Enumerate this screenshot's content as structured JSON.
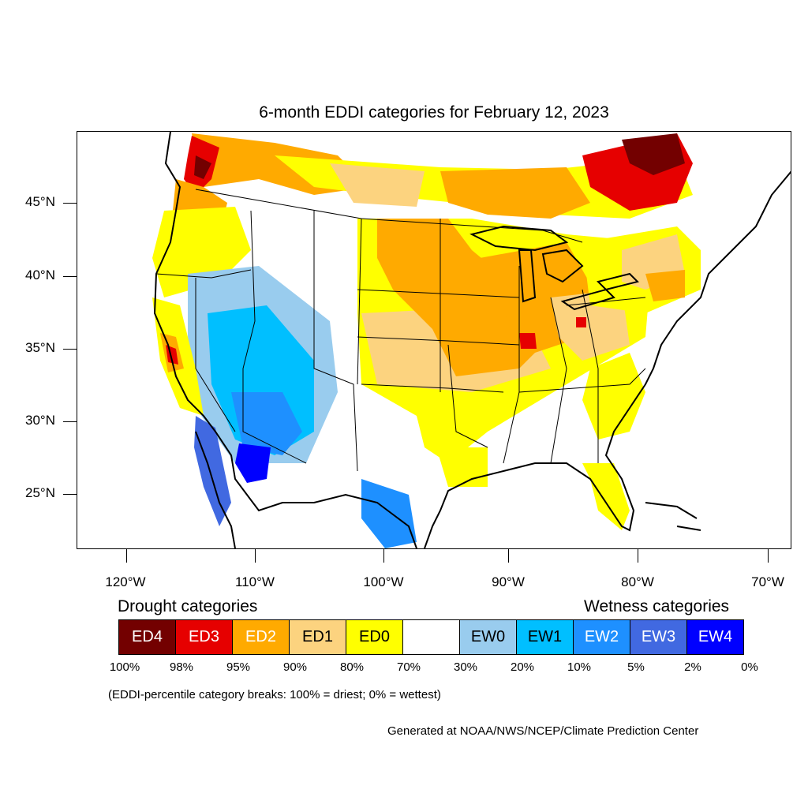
{
  "title": "6-month EDDI categories for February 12, 2023",
  "map": {
    "lat_ticks": [
      "45°N",
      "40°N",
      "35°N",
      "30°N",
      "25°N"
    ],
    "lon_ticks": [
      "120°W",
      "110°W",
      "100°W",
      "90°W",
      "80°W",
      "70°W"
    ]
  },
  "legend": {
    "drought_heading": "Drought categories",
    "wetness_heading": "Wetness categories",
    "categories": [
      {
        "label": "ED4",
        "color": "#730000",
        "text_color": "#ffffff"
      },
      {
        "label": "ED3",
        "color": "#e60000",
        "text_color": "#ffffff"
      },
      {
        "label": "ED2",
        "color": "#ffaa00",
        "text_color": "#ffffff"
      },
      {
        "label": "ED1",
        "color": "#fcd37f",
        "text_color": "#000000"
      },
      {
        "label": "ED0",
        "color": "#ffff00",
        "text_color": "#000000"
      },
      {
        "label": "",
        "color": "#ffffff",
        "text_color": "#000000"
      },
      {
        "label": "EW0",
        "color": "#99ccee",
        "text_color": "#000000"
      },
      {
        "label": "EW1",
        "color": "#00bfff",
        "text_color": "#000000"
      },
      {
        "label": "EW2",
        "color": "#1e90ff",
        "text_color": "#ffffff"
      },
      {
        "label": "EW3",
        "color": "#4169e1",
        "text_color": "#ffffff"
      },
      {
        "label": "EW4",
        "color": "#0000ff",
        "text_color": "#ffffff"
      }
    ],
    "percentiles": [
      "100%",
      "98%",
      "95%",
      "90%",
      "80%",
      "70%",
      "30%",
      "20%",
      "10%",
      "5%",
      "2%",
      "0%"
    ]
  },
  "note": "(EDDI-percentile category breaks: 100% = driest; 0% = wettest)",
  "credit": "Generated at NOAA/NWS/NCEP/Climate Prediction Center"
}
